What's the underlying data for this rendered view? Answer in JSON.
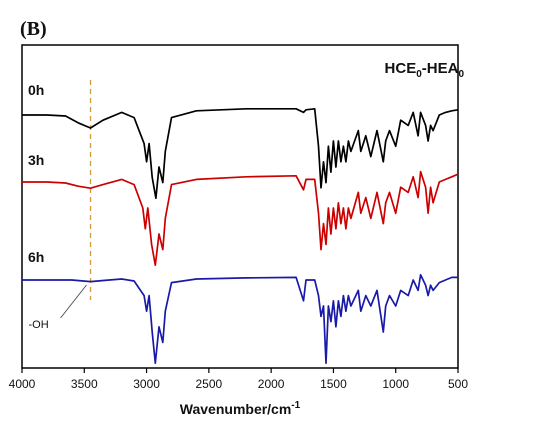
{
  "panel_label": "(B)",
  "sample": {
    "main": "HCE",
    "sub1": "0",
    "dash": "-HEA",
    "sub2": "0"
  },
  "chart_data": {
    "type": "line",
    "xlabel": "Wavenumber/cm",
    "xlabel_sup": "-1",
    "ylabel": "",
    "xlim": [
      4000,
      500
    ],
    "x_ticks": [
      4000,
      3500,
      3000,
      2500,
      2000,
      1500,
      1000,
      500
    ],
    "grid": false,
    "annotation": {
      "text": "-OH",
      "x": 3450
    },
    "series": [
      {
        "name": "0h",
        "color": "#000000",
        "points": [
          [
            4000,
            0
          ],
          [
            3800,
            0
          ],
          [
            3650,
            -0.02
          ],
          [
            3550,
            -0.15
          ],
          [
            3450,
            -0.25
          ],
          [
            3350,
            -0.1
          ],
          [
            3200,
            0.05
          ],
          [
            3100,
            -0.05
          ],
          [
            3020,
            -0.55
          ],
          [
            3000,
            -0.9
          ],
          [
            2980,
            -0.55
          ],
          [
            2955,
            -1.2
          ],
          [
            2925,
            -1.6
          ],
          [
            2900,
            -1.0
          ],
          [
            2870,
            -1.3
          ],
          [
            2850,
            -0.7
          ],
          [
            2800,
            -0.05
          ],
          [
            2600,
            0.08
          ],
          [
            2200,
            0.12
          ],
          [
            1800,
            0.12
          ],
          [
            1740,
            0.05
          ],
          [
            1720,
            0.1
          ],
          [
            1650,
            0.12
          ],
          [
            1620,
            -0.6
          ],
          [
            1600,
            -1.4
          ],
          [
            1580,
            -0.9
          ],
          [
            1560,
            -1.3
          ],
          [
            1540,
            -0.6
          ],
          [
            1520,
            -1.1
          ],
          [
            1500,
            -0.5
          ],
          [
            1480,
            -1.0
          ],
          [
            1460,
            -0.5
          ],
          [
            1440,
            -0.9
          ],
          [
            1420,
            -0.6
          ],
          [
            1400,
            -0.9
          ],
          [
            1380,
            -0.5
          ],
          [
            1360,
            -0.7
          ],
          [
            1300,
            -0.3
          ],
          [
            1280,
            -0.7
          ],
          [
            1240,
            -0.4
          ],
          [
            1200,
            -0.8
          ],
          [
            1150,
            -0.3
          ],
          [
            1100,
            -0.9
          ],
          [
            1080,
            -0.5
          ],
          [
            1050,
            -0.3
          ],
          [
            1000,
            -0.6
          ],
          [
            960,
            -0.1
          ],
          [
            900,
            -0.2
          ],
          [
            860,
            0.05
          ],
          [
            820,
            -0.4
          ],
          [
            800,
            0.05
          ],
          [
            760,
            -0.2
          ],
          [
            740,
            -0.5
          ],
          [
            720,
            -0.2
          ],
          [
            700,
            -0.3
          ],
          [
            650,
            0.0
          ],
          [
            600,
            0.05
          ],
          [
            550,
            0.08
          ],
          [
            500,
            0.1
          ]
        ]
      },
      {
        "name": "3h",
        "color": "#cc0000",
        "points": [
          [
            4000,
            0
          ],
          [
            3800,
            0
          ],
          [
            3650,
            -0.02
          ],
          [
            3550,
            -0.08
          ],
          [
            3450,
            -0.12
          ],
          [
            3350,
            -0.05
          ],
          [
            3200,
            0.05
          ],
          [
            3100,
            -0.05
          ],
          [
            3030,
            -0.5
          ],
          [
            3010,
            -0.9
          ],
          [
            2990,
            -0.5
          ],
          [
            2960,
            -1.2
          ],
          [
            2930,
            -1.6
          ],
          [
            2900,
            -1.0
          ],
          [
            2870,
            -1.3
          ],
          [
            2850,
            -0.7
          ],
          [
            2800,
            -0.05
          ],
          [
            2600,
            0.05
          ],
          [
            2200,
            0.1
          ],
          [
            1800,
            0.12
          ],
          [
            1740,
            -0.15
          ],
          [
            1720,
            0.05
          ],
          [
            1650,
            0.05
          ],
          [
            1620,
            -0.6
          ],
          [
            1600,
            -1.3
          ],
          [
            1580,
            -0.8
          ],
          [
            1560,
            -1.2
          ],
          [
            1540,
            -0.5
          ],
          [
            1520,
            -1.0
          ],
          [
            1500,
            -0.5
          ],
          [
            1480,
            -0.9
          ],
          [
            1460,
            -0.4
          ],
          [
            1440,
            -0.8
          ],
          [
            1420,
            -0.5
          ],
          [
            1400,
            -0.9
          ],
          [
            1380,
            -0.5
          ],
          [
            1360,
            -0.7
          ],
          [
            1300,
            -0.2
          ],
          [
            1280,
            -0.6
          ],
          [
            1240,
            -0.3
          ],
          [
            1200,
            -0.7
          ],
          [
            1150,
            -0.2
          ],
          [
            1100,
            -0.8
          ],
          [
            1080,
            -0.4
          ],
          [
            1050,
            -0.2
          ],
          [
            1000,
            -0.6
          ],
          [
            960,
            -0.1
          ],
          [
            900,
            -0.2
          ],
          [
            860,
            0.1
          ],
          [
            820,
            -0.3
          ],
          [
            800,
            0.2
          ],
          [
            760,
            -0.1
          ],
          [
            740,
            -0.6
          ],
          [
            720,
            -0.1
          ],
          [
            700,
            -0.4
          ],
          [
            650,
            0.0
          ],
          [
            600,
            0.05
          ],
          [
            550,
            0.1
          ],
          [
            500,
            0.15
          ]
        ]
      },
      {
        "name": "6h",
        "color": "#1a1aa8",
        "points": [
          [
            4000,
            0
          ],
          [
            3800,
            0
          ],
          [
            3600,
            0.0
          ],
          [
            3450,
            -0.03
          ],
          [
            3300,
            0.0
          ],
          [
            3200,
            0.02
          ],
          [
            3100,
            -0.02
          ],
          [
            3020,
            -0.3
          ],
          [
            3000,
            -0.6
          ],
          [
            2980,
            -0.3
          ],
          [
            2955,
            -1.0
          ],
          [
            2930,
            -1.6
          ],
          [
            2900,
            -0.9
          ],
          [
            2870,
            -1.2
          ],
          [
            2850,
            -0.6
          ],
          [
            2800,
            -0.05
          ],
          [
            2600,
            0.02
          ],
          [
            2200,
            0.04
          ],
          [
            1800,
            0.05
          ],
          [
            1740,
            -0.4
          ],
          [
            1720,
            0.0
          ],
          [
            1650,
            0.0
          ],
          [
            1620,
            -0.3
          ],
          [
            1600,
            -0.7
          ],
          [
            1580,
            -0.5
          ],
          [
            1560,
            -1.6
          ],
          [
            1540,
            -0.5
          ],
          [
            1520,
            -0.8
          ],
          [
            1500,
            -0.4
          ],
          [
            1480,
            -0.9
          ],
          [
            1460,
            -0.4
          ],
          [
            1440,
            -0.7
          ],
          [
            1420,
            -0.3
          ],
          [
            1400,
            -0.6
          ],
          [
            1380,
            -0.3
          ],
          [
            1360,
            -0.5
          ],
          [
            1300,
            -0.2
          ],
          [
            1280,
            -0.6
          ],
          [
            1240,
            -0.3
          ],
          [
            1200,
            -0.5
          ],
          [
            1150,
            -0.2
          ],
          [
            1100,
            -1.0
          ],
          [
            1080,
            -0.5
          ],
          [
            1050,
            -0.3
          ],
          [
            1000,
            -0.5
          ],
          [
            960,
            -0.2
          ],
          [
            900,
            -0.3
          ],
          [
            860,
            0.0
          ],
          [
            820,
            -0.2
          ],
          [
            800,
            0.1
          ],
          [
            760,
            -0.1
          ],
          [
            740,
            -0.3
          ],
          [
            720,
            -0.1
          ],
          [
            700,
            -0.2
          ],
          [
            650,
            -0.05
          ],
          [
            600,
            0.0
          ],
          [
            550,
            0.05
          ],
          [
            500,
            0.05
          ]
        ]
      }
    ]
  }
}
